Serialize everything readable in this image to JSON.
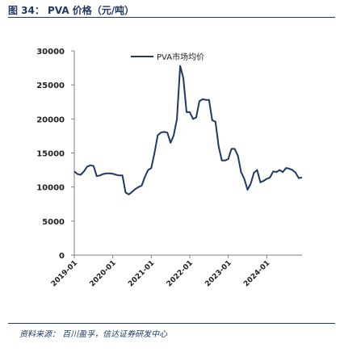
{
  "header": {
    "title": "图 34：  PVA 价格（元/吨）"
  },
  "footer": {
    "source": "资料来源：  百川盈孚，信达证券研发中心"
  },
  "chart_data": {
    "type": "line",
    "title": "",
    "xlabel": "",
    "ylabel": "",
    "ylim": [
      0,
      30000
    ],
    "xlim": [
      "2019-01",
      "2024-12"
    ],
    "y_ticks": [
      0,
      5000,
      10000,
      15000,
      20000,
      25000,
      30000
    ],
    "x_ticks": [
      "2019-01",
      "2020-01",
      "2021-01",
      "2022-01",
      "2023-01",
      "2024-01"
    ],
    "legend": {
      "position": "top",
      "entries": [
        "PVA市场均价"
      ]
    },
    "grid": false,
    "series": [
      {
        "name": "PVA市场均价",
        "color": "#1f3864",
        "points": [
          [
            "2019-01",
            12300
          ],
          [
            "2019-02",
            11900
          ],
          [
            "2019-03",
            11800
          ],
          [
            "2019-04",
            12300
          ],
          [
            "2019-05",
            13000
          ],
          [
            "2019-06",
            13200
          ],
          [
            "2019-07",
            13100
          ],
          [
            "2019-08",
            11600
          ],
          [
            "2019-09",
            11700
          ],
          [
            "2019-10",
            11900
          ],
          [
            "2019-11",
            12000
          ],
          [
            "2019-12",
            12000
          ],
          [
            "2020-01",
            11950
          ],
          [
            "2020-02",
            11800
          ],
          [
            "2020-03",
            11700
          ],
          [
            "2020-04",
            11700
          ],
          [
            "2020-05",
            9200
          ],
          [
            "2020-06",
            8900
          ],
          [
            "2020-07",
            9300
          ],
          [
            "2020-08",
            9700
          ],
          [
            "2020-09",
            10000
          ],
          [
            "2020-10",
            10200
          ],
          [
            "2020-11",
            11500
          ],
          [
            "2020-12",
            12500
          ],
          [
            "2021-01",
            12800
          ],
          [
            "2021-02",
            15000
          ],
          [
            "2021-03",
            17600
          ],
          [
            "2021-04",
            18000
          ],
          [
            "2021-05",
            18100
          ],
          [
            "2021-06",
            18000
          ],
          [
            "2021-07",
            16500
          ],
          [
            "2021-08",
            17600
          ],
          [
            "2021-09",
            20000
          ],
          [
            "2021-10",
            27800
          ],
          [
            "2021-11",
            26000
          ],
          [
            "2021-12",
            21000
          ],
          [
            "2022-01",
            21000
          ],
          [
            "2022-02",
            20000
          ],
          [
            "2022-03",
            20200
          ],
          [
            "2022-04",
            22600
          ],
          [
            "2022-05",
            22900
          ],
          [
            "2022-06",
            22800
          ],
          [
            "2022-07",
            22800
          ],
          [
            "2022-08",
            19800
          ],
          [
            "2022-09",
            19600
          ],
          [
            "2022-10",
            16000
          ],
          [
            "2022-11",
            13900
          ],
          [
            "2022-12",
            13900
          ],
          [
            "2023-01",
            14100
          ],
          [
            "2023-02",
            15600
          ],
          [
            "2023-03",
            15600
          ],
          [
            "2023-04",
            14600
          ],
          [
            "2023-05",
            12200
          ],
          [
            "2023-06",
            11200
          ],
          [
            "2023-07",
            9600
          ],
          [
            "2023-08",
            10500
          ],
          [
            "2023-09",
            12100
          ],
          [
            "2023-10",
            12500
          ],
          [
            "2023-11",
            10700
          ],
          [
            "2023-12",
            10900
          ],
          [
            "2024-01",
            11200
          ],
          [
            "2024-02",
            11400
          ],
          [
            "2024-03",
            12300
          ],
          [
            "2024-04",
            12200
          ],
          [
            "2024-05",
            12500
          ],
          [
            "2024-06",
            12200
          ],
          [
            "2024-07",
            12800
          ],
          [
            "2024-08",
            12700
          ],
          [
            "2024-09",
            12500
          ],
          [
            "2024-10",
            12100
          ],
          [
            "2024-11",
            11300
          ],
          [
            "2024-12",
            11400
          ]
        ]
      }
    ]
  }
}
